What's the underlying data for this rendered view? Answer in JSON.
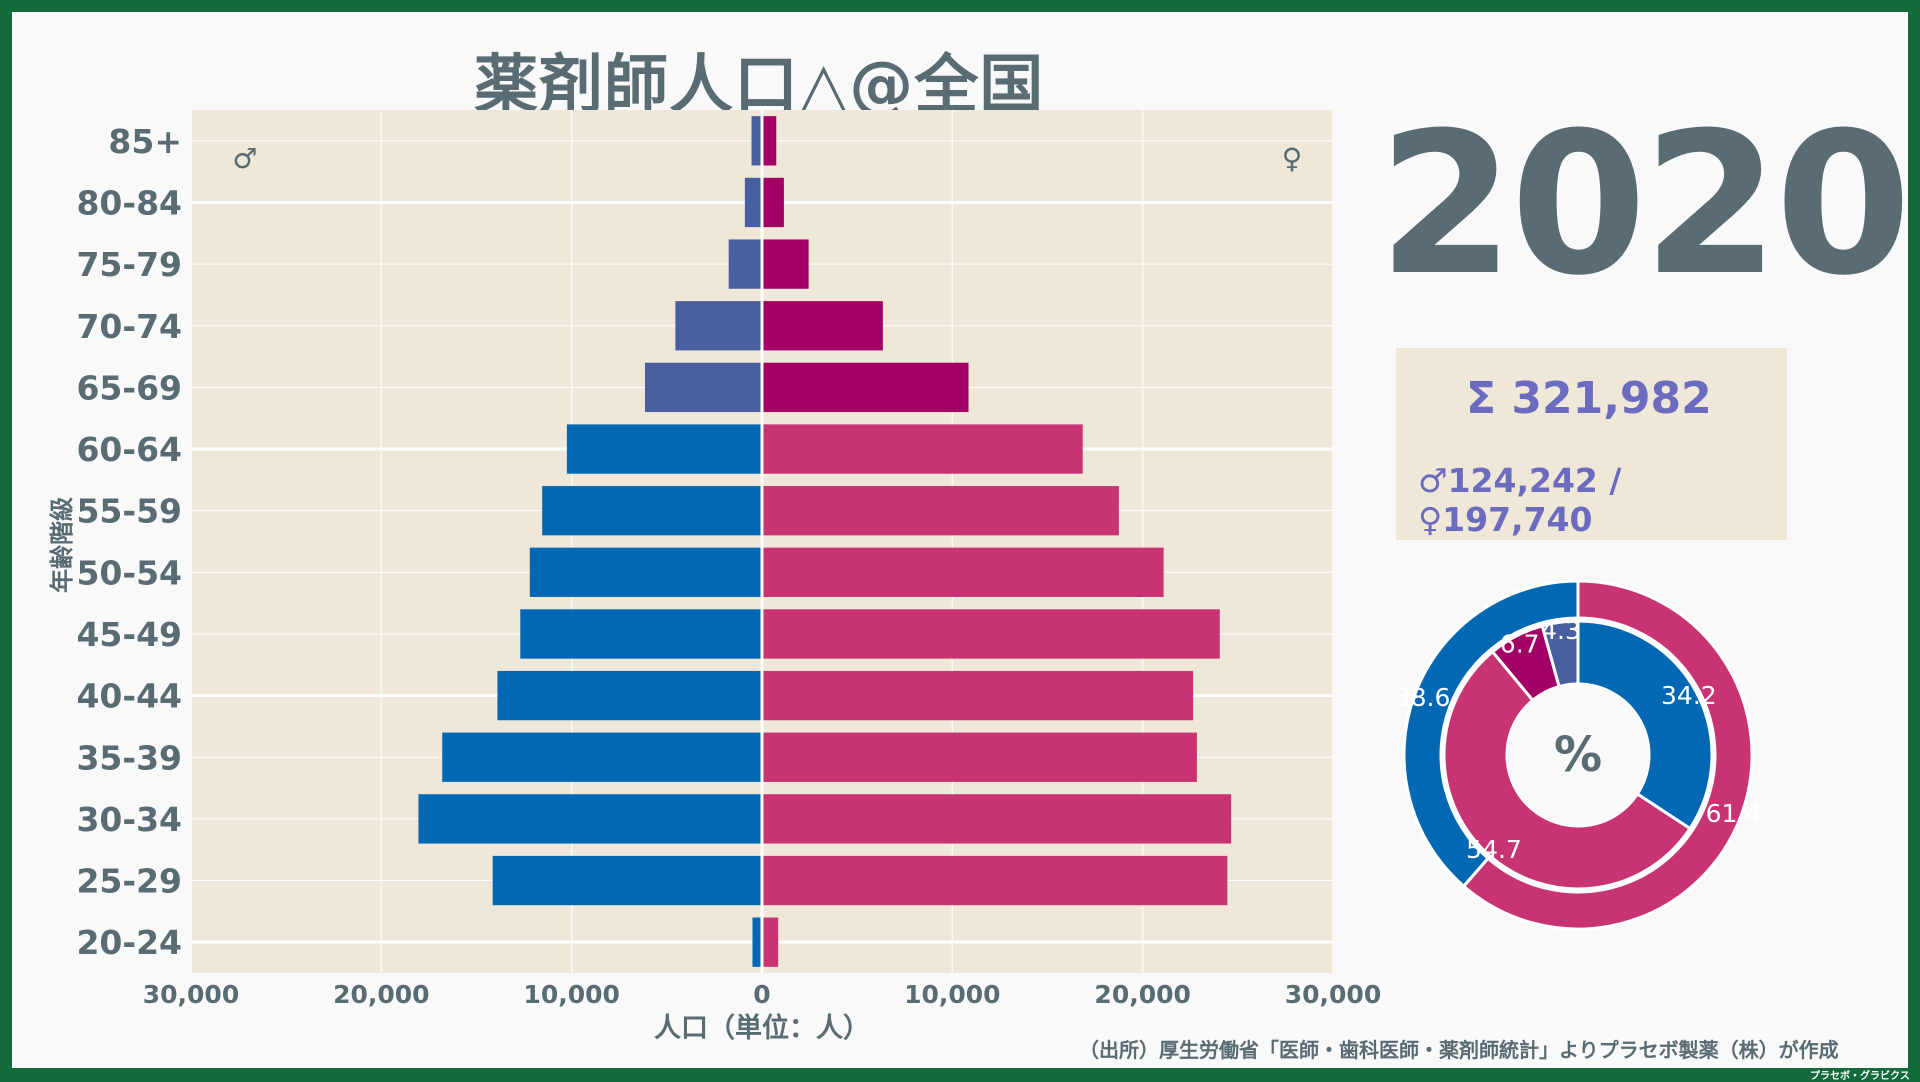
{
  "title": "薬剤師人口△@全国",
  "year": "2020",
  "total": "Σ 321,982",
  "split": "♂124,242 / ♀197,740",
  "source": "（出所）厚生労働省「医師・歯科医師・薬剤師統計」よりプラセボ製薬（株）が作成",
  "credit": "プラセボ・グラビクス",
  "colors": {
    "male_young": "#0368b3",
    "male_old": "#4a5fa0",
    "female_young": "#c73373",
    "female_old": "#a30066",
    "plot_bg": "#efe7d7",
    "text": "#5a6c73"
  },
  "chart_data": [
    {
      "type": "bar",
      "orientation": "horizontal-pyramid",
      "xlabel": "人口（単位：人）",
      "ylabel": "年齢階級",
      "xlim": [
        -30000,
        30000
      ],
      "xticks": [
        -30000,
        -20000,
        -10000,
        0,
        10000,
        20000,
        30000
      ],
      "xtick_labels": [
        "30,000",
        "20,000",
        "10,000",
        "0",
        "10,000",
        "20,000",
        "30,000"
      ],
      "male_symbol": "♂",
      "female_symbol": "♀",
      "categories": [
        "85+",
        "80-84",
        "75-79",
        "70-74",
        "65-69",
        "60-64",
        "55-59",
        "50-54",
        "45-49",
        "40-44",
        "35-39",
        "30-34",
        "25-29",
        "20-24"
      ],
      "series": [
        {
          "values": [
            550,
            900,
            1750,
            4550,
            6150,
            10250,
            11550,
            12200,
            12700,
            13900,
            16800,
            18050,
            14150,
            500
          ]
        },
        {
          "values": [
            750,
            1150,
            2450,
            6350,
            10850,
            16850,
            18750,
            21100,
            24050,
            22650,
            22850,
            24650,
            24450,
            850
          ]
        }
      ]
    },
    {
      "type": "pie",
      "center_label": "%",
      "outer": {
        "labels": [
          "38.6",
          "61.4"
        ],
        "values": [
          38.6,
          61.4
        ]
      },
      "inner": {
        "labels": [
          "4.3",
          "6.7",
          "54.7",
          "34.2"
        ],
        "values": [
          4.3,
          6.7,
          54.7,
          34.2
        ]
      }
    }
  ]
}
